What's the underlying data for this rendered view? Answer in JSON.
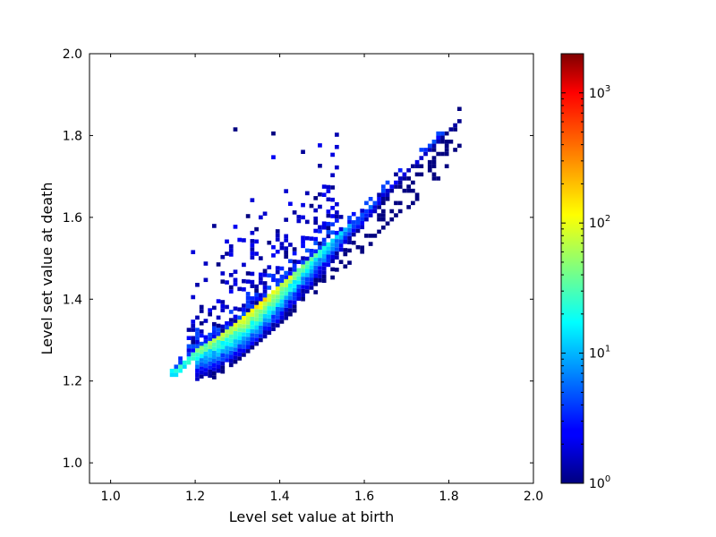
{
  "chart_data": {
    "type": "heatmap",
    "subtype": "2d-histogram",
    "title": "",
    "xlabel": "Level set value at birth",
    "ylabel": "Level set value at death",
    "xlim": [
      0.95,
      2.0
    ],
    "ylim": [
      0.95,
      2.0
    ],
    "xticks": [
      1.0,
      1.2,
      1.4,
      1.6,
      1.8,
      2.0
    ],
    "xtick_labels": [
      "1.0",
      "1.2",
      "1.4",
      "1.6",
      "1.8",
      "2.0"
    ],
    "yticks": [
      1.0,
      1.2,
      1.4,
      1.6,
      1.8,
      2.0
    ],
    "ytick_labels": [
      "1.0",
      "1.2",
      "1.4",
      "1.6",
      "1.8",
      "2.0"
    ],
    "bin_width": 0.01,
    "colormap": "jet",
    "color_scale": "log",
    "colorbar": {
      "min": 1,
      "max": 2000,
      "ticks": [
        1,
        10,
        100,
        1000
      ],
      "tick_bases": [
        "10",
        "10",
        "10",
        "10"
      ],
      "tick_exponents": [
        "0",
        "1",
        "2",
        "3"
      ]
    },
    "density_model": {
      "diagonal_band_counts": [
        {
          "birth": 1.15,
          "count": 20
        },
        {
          "birth": 1.25,
          "count": 60
        },
        {
          "birth": 1.35,
          "count": 150
        },
        {
          "birth": 1.45,
          "count": 40
        },
        {
          "birth": 1.55,
          "count": 8
        },
        {
          "birth": 1.65,
          "count": 2
        },
        {
          "birth": 1.8,
          "count": 1
        }
      ],
      "upper_boundary": [
        {
          "birth": 1.15,
          "death": 1.22
        },
        {
          "birth": 1.2,
          "death": 1.27
        },
        {
          "birth": 1.25,
          "death": 1.3
        },
        {
          "birth": 1.3,
          "death": 1.34
        },
        {
          "birth": 1.4,
          "death": 1.43
        },
        {
          "birth": 1.5,
          "death": 1.52
        },
        {
          "birth": 1.6,
          "death": 1.61
        },
        {
          "birth": 1.82,
          "death": 1.83
        }
      ],
      "scatter_region": {
        "birth_range": [
          1.18,
          1.55
        ],
        "death_max": 1.81
      },
      "outliers": [
        {
          "birth": 1.29,
          "death": 1.81
        },
        {
          "birth": 1.38,
          "death": 1.8
        },
        {
          "birth": 1.82,
          "death": 1.86
        },
        {
          "birth": 1.81,
          "death": 1.81
        },
        {
          "birth": 1.78,
          "death": 1.78
        }
      ]
    }
  }
}
